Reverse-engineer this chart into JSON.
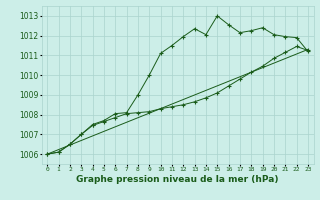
{
  "title": "Graphe pression niveau de la mer (hPa)",
  "bg_color": "#cceee8",
  "grid_color": "#aad4ce",
  "line_color": "#1a5c1a",
  "x_ticks": [
    0,
    1,
    2,
    3,
    4,
    5,
    6,
    7,
    8,
    9,
    10,
    11,
    12,
    13,
    14,
    15,
    16,
    17,
    18,
    19,
    20,
    21,
    22,
    23
  ],
  "ylim": [
    1005.5,
    1013.5
  ],
  "yticks": [
    1006,
    1007,
    1008,
    1009,
    1010,
    1011,
    1012,
    1013
  ],
  "line1_x": [
    0,
    1,
    2,
    3,
    4,
    5,
    6,
    7,
    8,
    9,
    10,
    11,
    12,
    13,
    14,
    15,
    16,
    17,
    18,
    19,
    20,
    21,
    22,
    23
  ],
  "line1_y": [
    1006.0,
    1006.1,
    1006.5,
    1007.0,
    1007.5,
    1007.7,
    1008.05,
    1008.1,
    1009.0,
    1010.0,
    1011.1,
    1011.5,
    1011.95,
    1012.35,
    1012.05,
    1013.0,
    1012.55,
    1012.15,
    1012.25,
    1012.4,
    1012.05,
    1011.95,
    1011.9,
    1011.2
  ],
  "line2_x": [
    0,
    1,
    2,
    3,
    4,
    5,
    6,
    7,
    8,
    9,
    10,
    11,
    12,
    13,
    14,
    15,
    16,
    17,
    18,
    19,
    20,
    21,
    22,
    23
  ],
  "line2_y": [
    1006.0,
    1006.1,
    1006.5,
    1007.0,
    1007.45,
    1007.65,
    1007.85,
    1008.05,
    1008.1,
    1008.15,
    1008.3,
    1008.4,
    1008.5,
    1008.65,
    1008.85,
    1009.1,
    1009.45,
    1009.8,
    1010.15,
    1010.45,
    1010.85,
    1011.15,
    1011.45,
    1011.25
  ],
  "line3_x": [
    0,
    23
  ],
  "line3_y": [
    1006.0,
    1011.3
  ]
}
